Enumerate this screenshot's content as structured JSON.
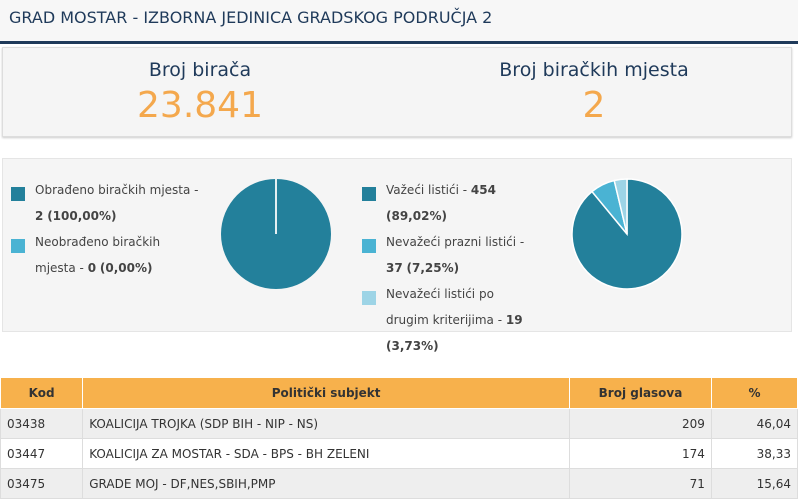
{
  "header": {
    "title": "GRAD MOSTAR - IZBORNA JEDINICA GRADSKOG PODRUČJA 2"
  },
  "stats": [
    {
      "label": "Broj birača",
      "value": "23.841"
    },
    {
      "label": "Broj biračkih mjesta",
      "value": "2"
    }
  ],
  "pies": [
    {
      "items": [
        {
          "label": "Obrađeno biračkih mjesta -",
          "value": 2,
          "percent": "(100,00%)",
          "color": "#23809b"
        },
        {
          "label": "Neobrađeno biračkih mjesta -",
          "value": 0,
          "percent": "(0,00%)",
          "color": "#4ab3d3"
        }
      ]
    },
    {
      "items": [
        {
          "label": "Važeći listići -",
          "value": 454,
          "percent": "(89,02%)",
          "color": "#23809b"
        },
        {
          "label": "Nevažeći prazni listići -",
          "value": 37,
          "percent": "(7,25%)",
          "color": "#4ab3d3"
        },
        {
          "label": "Nevažeći listići po drugim kriterijima -",
          "value": 19,
          "percent": "(3,73%)",
          "color": "#9dd4e6"
        }
      ]
    }
  ],
  "table": {
    "header": [
      "Kod",
      "Politički subjekt",
      "Broj glasova",
      "%"
    ],
    "rows": [
      [
        "03438",
        "KOALICIJA TROJKA (SDP BIH - NIP - NS)",
        "209",
        "46,04"
      ],
      [
        "03447",
        "KOALICIJA ZA MOSTAR - SDA - BPS - BH ZELENI",
        "174",
        "38,33"
      ],
      [
        "03475",
        "GRADE MOJ - DF,NES,SBIH,PMP",
        "71",
        "15,64"
      ]
    ]
  }
}
